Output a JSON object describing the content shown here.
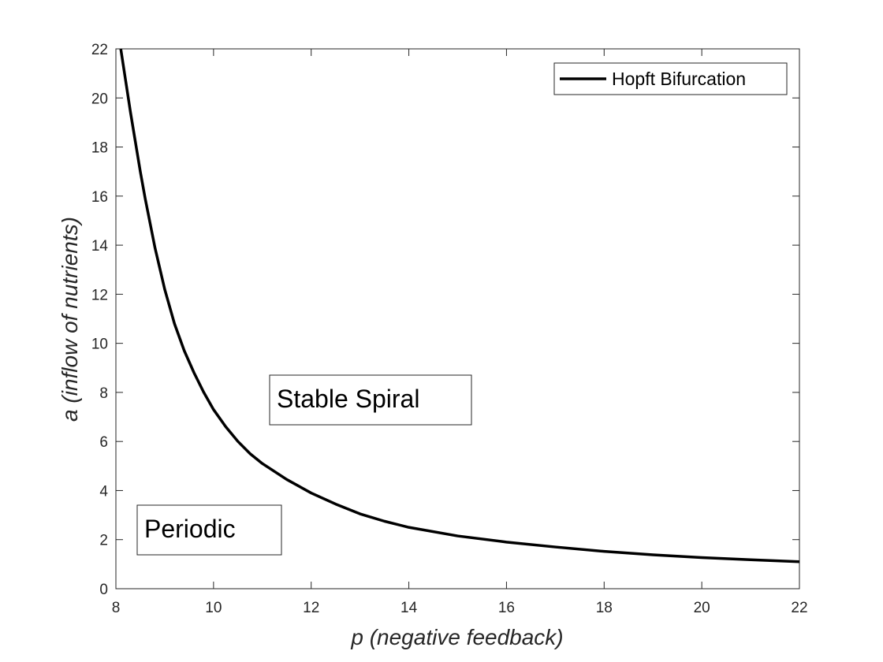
{
  "chart_data": {
    "type": "line",
    "xlabel_var": "p",
    "xlabel_rest": " (negative feedback)",
    "ylabel_var": "a",
    "ylabel_rest": " (inflow of nutrients)",
    "xlim": [
      8,
      22
    ],
    "ylim": [
      0,
      22
    ],
    "x_ticks": [
      "8",
      "10",
      "12",
      "14",
      "16",
      "18",
      "20",
      "22"
    ],
    "y_ticks": [
      "0",
      "2",
      "4",
      "6",
      "8",
      "10",
      "12",
      "14",
      "16",
      "18",
      "20",
      "22"
    ],
    "grid": false,
    "legend_position": "top-right",
    "series": [
      {
        "name": "Hopft Bifurcation",
        "color": "#000000",
        "x": [
          8.1,
          8.2,
          8.3,
          8.4,
          8.5,
          8.6,
          8.8,
          9.0,
          9.2,
          9.4,
          9.6,
          9.8,
          10,
          10.25,
          10.5,
          10.75,
          11,
          11.5,
          12,
          12.5,
          13,
          13.5,
          14,
          15,
          16,
          17,
          18,
          19,
          20,
          21,
          22
        ],
        "y": [
          22.0,
          20.7,
          19.4,
          18.2,
          17.0,
          15.9,
          13.9,
          12.2,
          10.8,
          9.7,
          8.8,
          8.0,
          7.3,
          6.6,
          6.0,
          5.5,
          5.1,
          4.45,
          3.9,
          3.45,
          3.05,
          2.75,
          2.5,
          2.15,
          1.9,
          1.7,
          1.52,
          1.38,
          1.27,
          1.18,
          1.1
        ]
      }
    ],
    "annotations": [
      {
        "text": "Stable Spiral"
      },
      {
        "text": "Periodic"
      }
    ]
  }
}
